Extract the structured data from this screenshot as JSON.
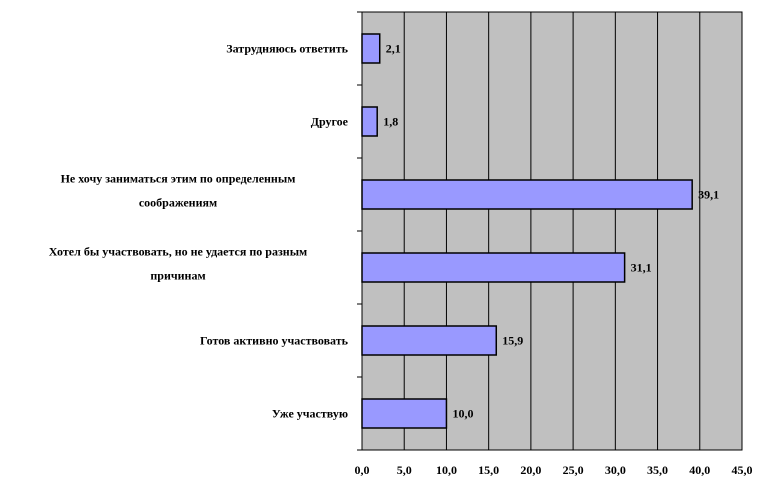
{
  "chart_data": {
    "type": "bar",
    "orientation": "horizontal",
    "categories": [
      [
        "Затрудняюсь ответить"
      ],
      [
        "Другое"
      ],
      [
        "Не хочу заниматься этим по определенным",
        "соображениям"
      ],
      [
        "Хотел бы участвовать, но не удается по разным",
        "причинам"
      ],
      [
        "Готов активно участвовать"
      ],
      [
        "Уже участвую"
      ]
    ],
    "values": [
      2.1,
      1.8,
      39.1,
      31.1,
      15.9,
      10.0
    ],
    "value_labels": [
      "2,1",
      "1,8",
      "39,1",
      "31,1",
      "15,9",
      "10,0"
    ],
    "xlim": [
      0,
      45
    ],
    "x_ticks": [
      0,
      5,
      10,
      15,
      20,
      25,
      30,
      35,
      40,
      45
    ],
    "x_tick_labels": [
      "0,0",
      "5,0",
      "10,0",
      "15,0",
      "20,0",
      "25,0",
      "30,0",
      "35,0",
      "40,0",
      "45,0"
    ],
    "grid": true,
    "colors": {
      "bar_fill": "#9999ff",
      "bar_stroke": "#000000",
      "plot_background": "#c0c0c0",
      "gridline": "#000000"
    }
  }
}
